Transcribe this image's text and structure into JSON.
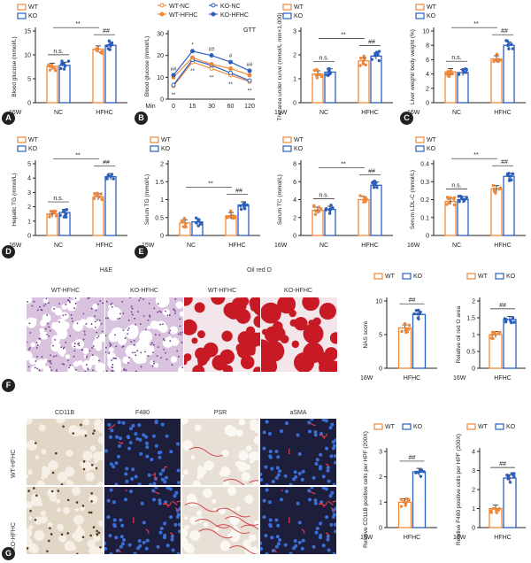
{
  "colors": {
    "wt": "#f0883a",
    "ko": "#2a5fbd",
    "he_bg": "#d8c2de",
    "he_nuc": "#6a3a8a",
    "oil_bg": "#f2e6ea",
    "oil_drop": "#c71a25",
    "ihc_bg": "#e2d6c6",
    "ihc_pos": "#5b3a1e",
    "if_bg": "#1c1e3c",
    "if_nuc": "#3b6fd8",
    "if_pos": "#e03a4a",
    "psr_bg": "#e8e0d6",
    "psr_red": "#d24a4a"
  },
  "panel_labels": [
    "A",
    "B",
    "C",
    "D",
    "E",
    "F",
    "G"
  ],
  "histology": {
    "he_title": "H&E",
    "oil_title": "Oil red O",
    "he_wt": "WT-HFHC",
    "he_ko": "KO-HFHC",
    "oil_wt": "WT-HFHC",
    "oil_ko": "KO-HFHC",
    "cd11b": "CD11B",
    "f480": "F480",
    "psr": "PSR",
    "asma": "aSMA",
    "row_wt": "WT-HFHC",
    "row_ko": "KO-HFHC"
  },
  "chart_data": [
    {
      "id": "A1",
      "type": "bar",
      "legend": [
        "WT",
        "KO"
      ],
      "ylabel": "Blood glucose (mmol/L)",
      "ylim": [
        0,
        15
      ],
      "yticks": [
        0,
        5,
        10,
        15
      ],
      "corner": "16W",
      "categories": [
        "NC",
        "HFHC"
      ],
      "series": [
        {
          "name": "WT",
          "values": [
            7.6,
            11.2
          ]
        },
        {
          "name": "KO",
          "values": [
            7.8,
            12.0
          ]
        }
      ],
      "annotations": [
        "n.s.",
        "**",
        "##"
      ]
    },
    {
      "id": "B1",
      "type": "line",
      "legend": [
        "WT-NC",
        "KO-NC",
        "WT-HFHC",
        "KO-HFHC"
      ],
      "title": "GTT",
      "ylabel": "Blood glucose (mmol/L)",
      "xlabel": "Min",
      "ylim": [
        0,
        30
      ],
      "yticks": [
        0,
        10,
        20,
        30
      ],
      "x": [
        0,
        15,
        30,
        60,
        120
      ],
      "series": [
        {
          "name": "WT-NC",
          "values": [
            6,
            17,
            14,
            11,
            8
          ]
        },
        {
          "name": "KO-NC",
          "values": [
            6.5,
            18,
            15.5,
            12,
            8.5
          ]
        },
        {
          "name": "WT-HFHC",
          "values": [
            10,
            19,
            16,
            14,
            11
          ]
        },
        {
          "name": "KO-HFHC",
          "values": [
            11,
            22,
            20,
            17,
            13
          ]
        }
      ],
      "annotations": [
        "##",
        "*",
        "##",
        "#",
        "##",
        "**",
        "**",
        "**",
        "**",
        "**"
      ]
    },
    {
      "id": "C1",
      "type": "bar",
      "legend": [
        "WT",
        "KO"
      ],
      "ylabel": "The area under curve (mmol/L·min×1,000)",
      "ylim": [
        0,
        3
      ],
      "yticks": [
        0,
        1,
        2,
        3
      ],
      "corner": "15W",
      "categories": [
        "NC",
        "HFHC"
      ],
      "series": [
        {
          "name": "WT",
          "values": [
            1.2,
            1.75
          ]
        },
        {
          "name": "KO",
          "values": [
            1.28,
            1.95
          ]
        }
      ],
      "annotations": [
        "n.s.",
        "**",
        "##"
      ]
    },
    {
      "id": "D1",
      "type": "bar",
      "legend": [
        "WT",
        "KO"
      ],
      "ylabel": "Liver weight/ body weight (%)",
      "ylim": [
        0,
        10
      ],
      "yticks": [
        0,
        2,
        4,
        6,
        8,
        10
      ],
      "corner": "16W",
      "categories": [
        "NC",
        "HFHC"
      ],
      "series": [
        {
          "name": "WT",
          "values": [
            4.3,
            6.1
          ]
        },
        {
          "name": "KO",
          "values": [
            4.2,
            8.0
          ]
        }
      ],
      "annotations": [
        "n.s.",
        "**",
        "##"
      ]
    },
    {
      "id": "A2",
      "type": "bar",
      "legend": [
        "WT",
        "KO"
      ],
      "ylabel": "Hepatic TG (mmol/L)",
      "ylim": [
        0,
        5
      ],
      "yticks": [
        0,
        1,
        2,
        3,
        4,
        5
      ],
      "corner": "16W",
      "categories": [
        "NC",
        "HFHC"
      ],
      "series": [
        {
          "name": "WT",
          "values": [
            1.5,
            2.7
          ]
        },
        {
          "name": "KO",
          "values": [
            1.6,
            4.1
          ]
        }
      ],
      "annotations": [
        "n.s.",
        "**",
        "##"
      ]
    },
    {
      "id": "B2",
      "type": "bar",
      "legend": [
        "WT",
        "KO"
      ],
      "ylabel": "Serum TG (mmol/L)",
      "ylim": [
        0,
        2.0
      ],
      "yticks": [
        0,
        0.5,
        1.0,
        1.5,
        2.0
      ],
      "corner": "15W",
      "categories": [
        "NC",
        "HFHC"
      ],
      "series": [
        {
          "name": "WT",
          "values": [
            0.35,
            0.55
          ]
        },
        {
          "name": "KO",
          "values": [
            0.38,
            0.85
          ]
        }
      ],
      "annotations": [
        "**",
        "##"
      ]
    },
    {
      "id": "C2",
      "type": "bar",
      "legend": [
        "WT",
        "KO"
      ],
      "ylabel": "Serum TC (mmol/L)",
      "ylim": [
        0,
        8
      ],
      "yticks": [
        0,
        2,
        4,
        6,
        8
      ],
      "corner": "16W",
      "categories": [
        "NC",
        "HFHC"
      ],
      "series": [
        {
          "name": "WT",
          "values": [
            2.8,
            4.0
          ]
        },
        {
          "name": "KO",
          "values": [
            2.9,
            5.6
          ]
        }
      ],
      "annotations": [
        "n.s.",
        "**",
        "##"
      ]
    },
    {
      "id": "D2",
      "type": "bar",
      "legend": [
        "WT",
        "KO"
      ],
      "ylabel": "Serum LDL-C (mmol/L)",
      "ylim": [
        0,
        0.4
      ],
      "yticks": [
        0,
        0.1,
        0.2,
        0.3,
        0.4
      ],
      "corner": "16W",
      "categories": [
        "NC",
        "HFHC"
      ],
      "series": [
        {
          "name": "WT",
          "values": [
            0.19,
            0.26
          ]
        },
        {
          "name": "KO",
          "values": [
            0.2,
            0.33
          ]
        }
      ],
      "annotations": [
        "n.s.",
        "**",
        "##"
      ]
    },
    {
      "id": "F1",
      "type": "bar",
      "legend": [
        "WT",
        "KO"
      ],
      "ylabel": "NAS score",
      "ylim": [
        0,
        10
      ],
      "yticks": [
        0,
        5,
        10
      ],
      "corner": "16W",
      "categories": [
        "HFHC"
      ],
      "series": [
        {
          "name": "WT",
          "values": [
            6.0
          ]
        },
        {
          "name": "KO",
          "values": [
            8.0
          ]
        }
      ],
      "annotations": [
        "##"
      ]
    },
    {
      "id": "F2",
      "type": "bar",
      "legend": [
        "WT",
        "KO"
      ],
      "ylabel": "Relative oil red O area",
      "ylim": [
        0,
        2.0
      ],
      "yticks": [
        0,
        0.5,
        1.0,
        1.5,
        2.0
      ],
      "corner": "16W",
      "categories": [
        "HFHC"
      ],
      "series": [
        {
          "name": "WT",
          "values": [
            1.0
          ]
        },
        {
          "name": "KO",
          "values": [
            1.45
          ]
        }
      ],
      "annotations": [
        "##"
      ]
    },
    {
      "id": "G1",
      "type": "bar",
      "legend": [
        "WT",
        "KO"
      ],
      "ylabel": "Relative CD11B positive cells per HPF (200X)",
      "ylim": [
        0,
        3
      ],
      "yticks": [
        0,
        1,
        2,
        3
      ],
      "corner": "16W",
      "categories": [
        "HFHC"
      ],
      "series": [
        {
          "name": "WT",
          "values": [
            1.0
          ]
        },
        {
          "name": "KO",
          "values": [
            2.2
          ]
        }
      ],
      "annotations": [
        "##"
      ]
    },
    {
      "id": "G2",
      "type": "bar",
      "legend": [
        "WT",
        "KO"
      ],
      "ylabel": "Relative F480 positive cells per HPF (200X)",
      "ylim": [
        0,
        4
      ],
      "yticks": [
        0,
        1,
        2,
        3,
        4
      ],
      "corner": "16W",
      "categories": [
        "HFHC"
      ],
      "series": [
        {
          "name": "WT",
          "values": [
            1.0
          ]
        },
        {
          "name": "KO",
          "values": [
            2.6
          ]
        }
      ],
      "annotations": [
        "##"
      ]
    }
  ]
}
